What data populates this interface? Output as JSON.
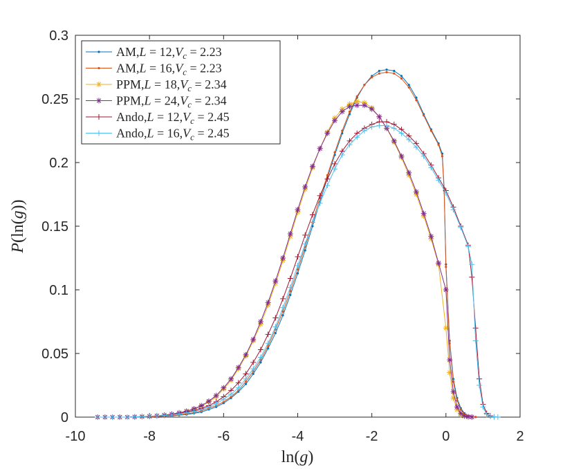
{
  "chart_data": {
    "type": "line",
    "title": "",
    "xlabel": "ln(g)",
    "ylabel": "P(ln(g))",
    "xlim": [
      -10,
      2
    ],
    "ylim": [
      0,
      0.3
    ],
    "xticks": [
      -10,
      -8,
      -6,
      -4,
      -2,
      0,
      2
    ],
    "yticks": [
      0,
      0.05,
      0.1,
      0.15,
      0.2,
      0.25,
      0.3
    ],
    "xtick_labels": [
      "-10",
      "-8",
      "-6",
      "-4",
      "-2",
      "0",
      "2"
    ],
    "ytick_labels": [
      "0",
      "0.05",
      "0.1",
      "0.15",
      "0.2",
      "0.25",
      "0.3"
    ],
    "grid": false,
    "legend_position": "top-left",
    "series": [
      {
        "name": "AM,L = 12,V_c = 2.23",
        "legend": {
          "prefix": "AM,",
          "L": "12",
          "Vc": "2.23"
        },
        "color": "#0072BD",
        "marker": "dot",
        "x": [
          -9.4,
          -9.2,
          -9.0,
          -8.8,
          -8.6,
          -8.4,
          -8.2,
          -8.0,
          -7.8,
          -7.6,
          -7.4,
          -7.2,
          -7.0,
          -6.8,
          -6.6,
          -6.4,
          -6.2,
          -6.0,
          -5.8,
          -5.6,
          -5.4,
          -5.2,
          -5.0,
          -4.8,
          -4.6,
          -4.4,
          -4.2,
          -4.0,
          -3.8,
          -3.6,
          -3.4,
          -3.2,
          -3.0,
          -2.8,
          -2.6,
          -2.4,
          -2.2,
          -2.0,
          -1.8,
          -1.6,
          -1.4,
          -1.2,
          -1.0,
          -0.8,
          -0.6,
          -0.4,
          -0.2,
          -0.1,
          -0.05,
          0.0,
          0.1,
          0.2,
          0.3,
          0.4,
          0.5,
          0.6,
          0.7,
          0.8
        ],
        "y": [
          0,
          0,
          0,
          0,
          0,
          0,
          0,
          0.0002,
          0.0004,
          0.0007,
          0.001,
          0.0015,
          0.002,
          0.003,
          0.004,
          0.006,
          0.008,
          0.011,
          0.015,
          0.02,
          0.026,
          0.034,
          0.043,
          0.054,
          0.066,
          0.08,
          0.096,
          0.113,
          0.131,
          0.15,
          0.169,
          0.188,
          0.206,
          0.223,
          0.238,
          0.251,
          0.261,
          0.268,
          0.272,
          0.273,
          0.272,
          0.268,
          0.261,
          0.251,
          0.238,
          0.226,
          0.215,
          0.207,
          0.18,
          0.12,
          0.06,
          0.03,
          0.015,
          0.007,
          0.003,
          0.001,
          0.0003,
          0.0001
        ]
      },
      {
        "name": "AM,L = 16,V_c = 2.23",
        "legend": {
          "prefix": "AM,",
          "L": "16",
          "Vc": "2.23"
        },
        "color": "#D95319",
        "marker": "dot",
        "x": [
          -9.4,
          -9.2,
          -9.0,
          -8.8,
          -8.6,
          -8.4,
          -8.2,
          -8.0,
          -7.8,
          -7.6,
          -7.4,
          -7.2,
          -7.0,
          -6.8,
          -6.6,
          -6.4,
          -6.2,
          -6.0,
          -5.8,
          -5.6,
          -5.4,
          -5.2,
          -5.0,
          -4.8,
          -4.6,
          -4.4,
          -4.2,
          -4.0,
          -3.8,
          -3.6,
          -3.4,
          -3.2,
          -3.0,
          -2.8,
          -2.6,
          -2.4,
          -2.2,
          -2.0,
          -1.8,
          -1.6,
          -1.4,
          -1.2,
          -1.0,
          -0.8,
          -0.6,
          -0.4,
          -0.2,
          -0.1,
          -0.05,
          0.0,
          0.1,
          0.2,
          0.3,
          0.4,
          0.5,
          0.6,
          0.7,
          0.8
        ],
        "y": [
          0,
          0,
          0,
          0,
          0,
          0,
          0,
          0.0002,
          0.0005,
          0.0008,
          0.0012,
          0.0018,
          0.0025,
          0.0035,
          0.005,
          0.007,
          0.009,
          0.012,
          0.016,
          0.021,
          0.028,
          0.036,
          0.045,
          0.056,
          0.069,
          0.083,
          0.099,
          0.116,
          0.134,
          0.153,
          0.172,
          0.19,
          0.208,
          0.225,
          0.24,
          0.252,
          0.261,
          0.267,
          0.27,
          0.271,
          0.27,
          0.266,
          0.259,
          0.249,
          0.237,
          0.225,
          0.214,
          0.205,
          0.178,
          0.118,
          0.058,
          0.028,
          0.013,
          0.006,
          0.0025,
          0.001,
          0.0003,
          0.0001
        ]
      },
      {
        "name": "PPM,L = 18,V_c = 2.34",
        "legend": {
          "prefix": "PPM,",
          "L": "18",
          "Vc": "2.34"
        },
        "color": "#EDB120",
        "marker": "star",
        "x": [
          -9.4,
          -9.2,
          -9.0,
          -8.8,
          -8.6,
          -8.4,
          -8.2,
          -8.0,
          -7.8,
          -7.6,
          -7.4,
          -7.2,
          -7.0,
          -6.8,
          -6.6,
          -6.4,
          -6.2,
          -6.0,
          -5.8,
          -5.6,
          -5.4,
          -5.2,
          -5.0,
          -4.8,
          -4.6,
          -4.4,
          -4.2,
          -4.0,
          -3.8,
          -3.6,
          -3.4,
          -3.2,
          -3.0,
          -2.8,
          -2.6,
          -2.4,
          -2.2,
          -2.0,
          -1.8,
          -1.6,
          -1.4,
          -1.2,
          -1.0,
          -0.8,
          -0.6,
          -0.4,
          -0.2,
          0.0,
          0.1,
          0.2,
          0.3,
          0.4,
          0.5,
          0.6,
          0.7
        ],
        "y": [
          0,
          0,
          0,
          0,
          0,
          0.0002,
          0.0004,
          0.0007,
          0.001,
          0.0015,
          0.0022,
          0.003,
          0.0042,
          0.006,
          0.0085,
          0.012,
          0.016,
          0.022,
          0.029,
          0.038,
          0.048,
          0.06,
          0.073,
          0.088,
          0.105,
          0.123,
          0.142,
          0.161,
          0.179,
          0.196,
          0.211,
          0.224,
          0.235,
          0.242,
          0.246,
          0.248,
          0.247,
          0.243,
          0.236,
          0.227,
          0.216,
          0.204,
          0.19,
          0.175,
          0.158,
          0.14,
          0.12,
          0.07,
          0.035,
          0.015,
          0.006,
          0.002,
          0.0007,
          0.0002,
          0.0001
        ]
      },
      {
        "name": "PPM,L = 24,V_c = 2.34",
        "legend": {
          "prefix": "PPM,",
          "L": "24",
          "Vc": "2.34"
        },
        "color": "#7E2F8E",
        "marker": "star",
        "x": [
          -9.4,
          -9.2,
          -9.0,
          -8.8,
          -8.6,
          -8.4,
          -8.2,
          -8.0,
          -7.8,
          -7.6,
          -7.4,
          -7.2,
          -7.0,
          -6.8,
          -6.6,
          -6.4,
          -6.2,
          -6.0,
          -5.8,
          -5.6,
          -5.4,
          -5.2,
          -5.0,
          -4.8,
          -4.6,
          -4.4,
          -4.2,
          -4.0,
          -3.8,
          -3.6,
          -3.4,
          -3.2,
          -3.0,
          -2.8,
          -2.6,
          -2.4,
          -2.2,
          -2.0,
          -1.8,
          -1.6,
          -1.4,
          -1.2,
          -1.0,
          -0.8,
          -0.6,
          -0.4,
          -0.2,
          0.0,
          0.1,
          0.2,
          0.3,
          0.4,
          0.5,
          0.6,
          0.7
        ],
        "y": [
          0,
          0,
          0,
          0,
          0,
          0.0002,
          0.0004,
          0.0007,
          0.001,
          0.0016,
          0.0024,
          0.0034,
          0.0047,
          0.0065,
          0.009,
          0.0125,
          0.017,
          0.023,
          0.03,
          0.039,
          0.049,
          0.061,
          0.075,
          0.09,
          0.107,
          0.125,
          0.144,
          0.163,
          0.181,
          0.197,
          0.211,
          0.223,
          0.233,
          0.24,
          0.244,
          0.245,
          0.245,
          0.242,
          0.236,
          0.227,
          0.217,
          0.205,
          0.192,
          0.177,
          0.16,
          0.142,
          0.121,
          0.1,
          0.045,
          0.02,
          0.008,
          0.003,
          0.001,
          0.0003,
          0.0001
        ]
      },
      {
        "name": "Ando,L = 12,V_c = 2.45",
        "legend": {
          "prefix": "Ando,",
          "L": "12",
          "Vc": "2.45"
        },
        "color": "#A2142F",
        "marker": "plus",
        "x": [
          -9.4,
          -9.2,
          -9.0,
          -8.8,
          -8.6,
          -8.4,
          -8.2,
          -8.0,
          -7.8,
          -7.6,
          -7.4,
          -7.2,
          -7.0,
          -6.8,
          -6.6,
          -6.4,
          -6.2,
          -6.0,
          -5.8,
          -5.6,
          -5.4,
          -5.2,
          -5.0,
          -4.8,
          -4.6,
          -4.4,
          -4.2,
          -4.0,
          -3.8,
          -3.6,
          -3.4,
          -3.2,
          -3.0,
          -2.8,
          -2.6,
          -2.4,
          -2.2,
          -2.0,
          -1.8,
          -1.6,
          -1.4,
          -1.2,
          -1.0,
          -0.8,
          -0.6,
          -0.4,
          -0.2,
          0.0,
          0.2,
          0.4,
          0.6,
          0.7,
          0.8,
          0.9,
          1.0,
          1.1,
          1.2,
          1.3
        ],
        "y": [
          0,
          0,
          0,
          0,
          0,
          0.0002,
          0.0004,
          0.0007,
          0.001,
          0.0014,
          0.002,
          0.0028,
          0.0038,
          0.005,
          0.0068,
          0.009,
          0.012,
          0.016,
          0.021,
          0.027,
          0.034,
          0.043,
          0.053,
          0.065,
          0.078,
          0.093,
          0.109,
          0.126,
          0.143,
          0.159,
          0.174,
          0.187,
          0.199,
          0.209,
          0.217,
          0.223,
          0.227,
          0.23,
          0.232,
          0.232,
          0.23,
          0.226,
          0.221,
          0.215,
          0.207,
          0.198,
          0.188,
          0.178,
          0.165,
          0.15,
          0.135,
          0.11,
          0.07,
          0.03,
          0.01,
          0.003,
          0.001,
          0.0002
        ]
      },
      {
        "name": "Ando,L = 16,V_c = 2.45",
        "legend": {
          "prefix": "Ando,",
          "L": "16",
          "Vc": "2.45"
        },
        "color": "#4DBEEE",
        "marker": "plus",
        "x": [
          -9.4,
          -9.2,
          -9.0,
          -8.8,
          -8.6,
          -8.4,
          -8.2,
          -8.0,
          -7.8,
          -7.6,
          -7.4,
          -7.2,
          -7.0,
          -6.8,
          -6.6,
          -6.4,
          -6.2,
          -6.0,
          -5.8,
          -5.6,
          -5.4,
          -5.2,
          -5.0,
          -4.8,
          -4.6,
          -4.4,
          -4.2,
          -4.0,
          -3.8,
          -3.6,
          -3.4,
          -3.2,
          -3.0,
          -2.8,
          -2.6,
          -2.4,
          -2.2,
          -2.0,
          -1.8,
          -1.6,
          -1.4,
          -1.2,
          -1.0,
          -0.8,
          -0.6,
          -0.4,
          -0.2,
          0.0,
          0.2,
          0.4,
          0.6,
          0.7,
          0.8,
          0.9,
          1.0,
          1.1,
          1.2,
          1.3,
          1.4
        ],
        "y": [
          0,
          0,
          0,
          0,
          0,
          0.0002,
          0.0003,
          0.0006,
          0.0009,
          0.0013,
          0.0018,
          0.0025,
          0.0034,
          0.0045,
          0.006,
          0.008,
          0.0105,
          0.014,
          0.018,
          0.023,
          0.03,
          0.038,
          0.047,
          0.058,
          0.071,
          0.086,
          0.102,
          0.119,
          0.136,
          0.153,
          0.168,
          0.182,
          0.195,
          0.206,
          0.214,
          0.22,
          0.225,
          0.228,
          0.229,
          0.229,
          0.227,
          0.223,
          0.218,
          0.212,
          0.205,
          0.196,
          0.186,
          0.176,
          0.163,
          0.149,
          0.134,
          0.12,
          0.06,
          0.025,
          0.008,
          0.002,
          0.0007,
          0.0002,
          0.0001
        ]
      }
    ]
  }
}
